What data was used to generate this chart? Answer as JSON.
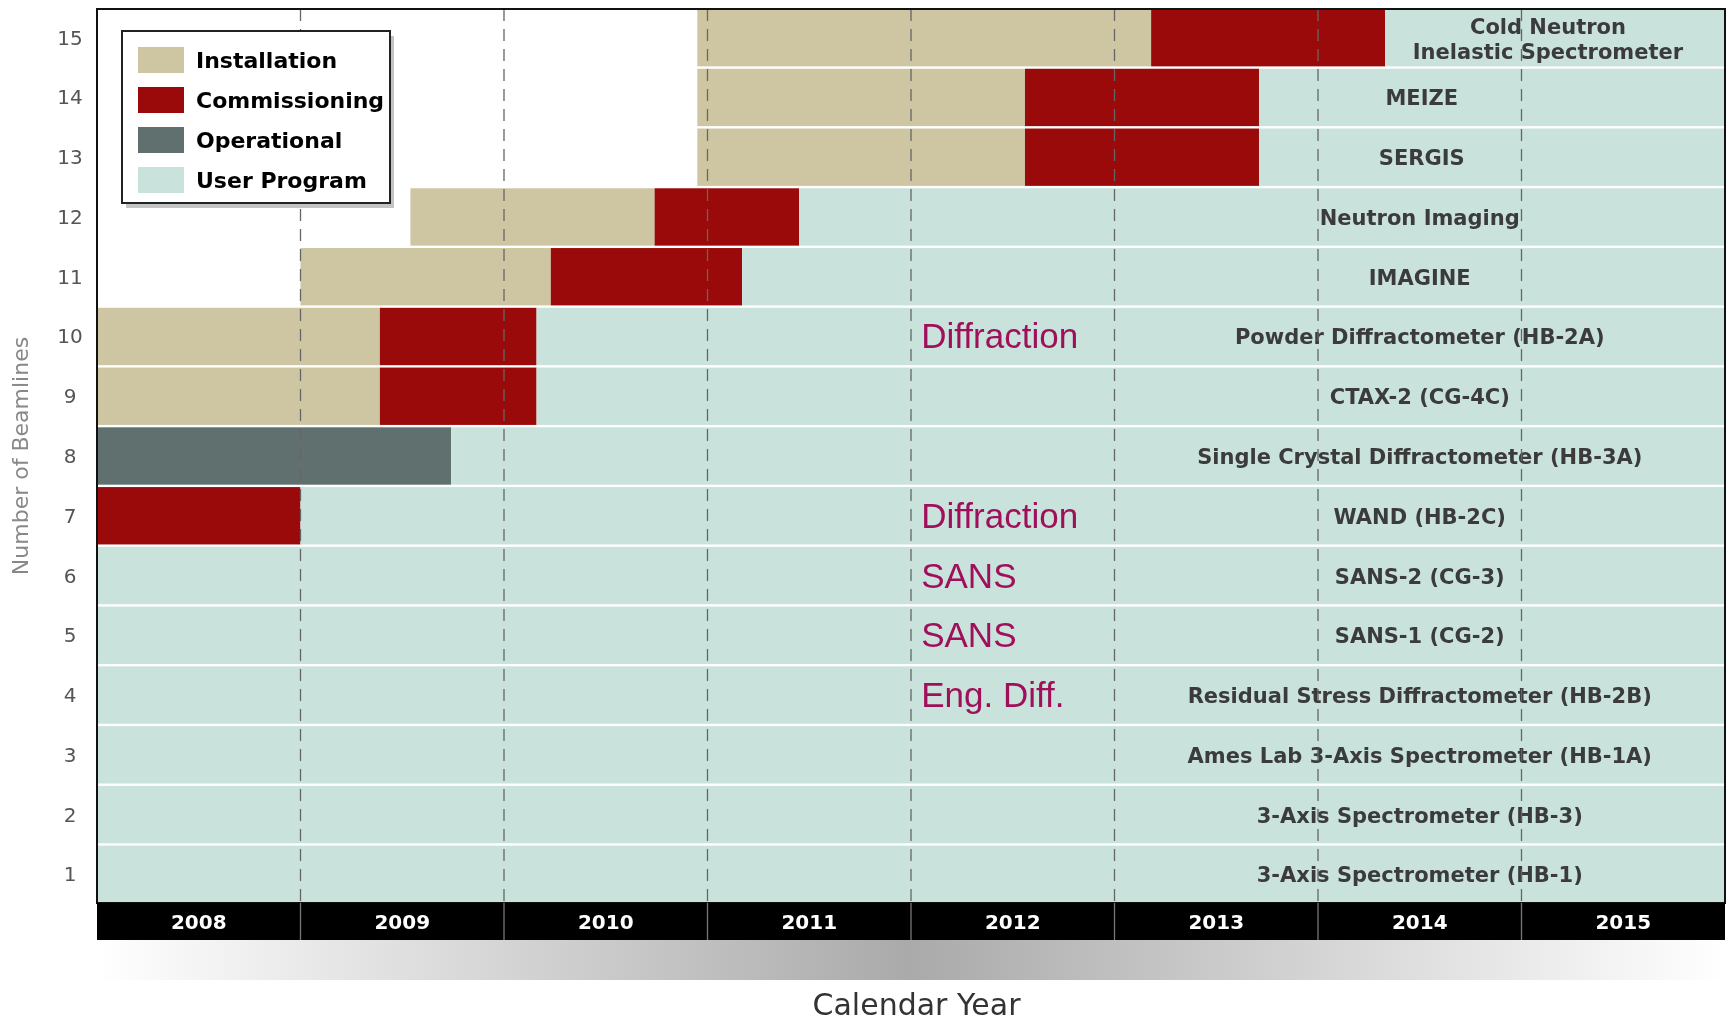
{
  "chart_data": {
    "type": "bar",
    "orientation": "horizontal",
    "xlabel": "Calendar Year",
    "ylabel": "Number of Beamlines",
    "categories": [
      "15",
      "14",
      "13",
      "12",
      "11",
      "10",
      "9",
      "8",
      "7",
      "6",
      "5",
      "4",
      "3",
      "2",
      "1"
    ],
    "series": [
      {
        "name": "Installation",
        "color": "#cec6a2",
        "base": [
          2010.95,
          2010.95,
          2010.95,
          2009.54,
          2009.0,
          2008,
          2008,
          null,
          null,
          null,
          null,
          null,
          null,
          null,
          null
        ],
        "values": [
          2.23,
          1.61,
          1.61,
          1.2,
          1.23,
          1.39,
          1.39,
          null,
          null,
          null,
          null,
          null,
          null,
          null,
          null
        ]
      },
      {
        "name": "Commissioning",
        "color": "#9a0a0a",
        "base": [
          2013.18,
          2012.56,
          2012.56,
          2010.74,
          2010.23,
          2009.39,
          2009.39,
          null,
          2008,
          null,
          null,
          null,
          null,
          null,
          null
        ],
        "values": [
          1.15,
          1.15,
          1.15,
          0.71,
          0.94,
          0.77,
          0.77,
          null,
          1.0,
          null,
          null,
          null,
          null,
          null,
          null
        ]
      },
      {
        "name": "Operational",
        "color": "#5f706e",
        "base": [
          null,
          null,
          null,
          null,
          null,
          null,
          null,
          2008,
          null,
          null,
          null,
          null,
          null,
          null,
          null
        ],
        "values": [
          null,
          null,
          null,
          null,
          null,
          null,
          null,
          1.74,
          null,
          null,
          null,
          null,
          null,
          null,
          null
        ]
      },
      {
        "name": "User Program",
        "color": "#c9e2dc",
        "base": [
          2014.33,
          2013.71,
          2013.71,
          2011.45,
          2011.17,
          2010.16,
          2010.16,
          2009.74,
          2009.0,
          2008,
          2008,
          2008,
          2008,
          2008,
          2008
        ],
        "values": [
          1.67,
          2.29,
          2.29,
          4.55,
          4.83,
          5.84,
          5.84,
          6.26,
          7.0,
          8,
          8,
          8,
          8,
          8,
          8
        ],
        "value_labels": [
          "Cold Neutron\nInelastic Spectrometer",
          "MEIZE",
          "SERGIS",
          "Neutron Imaging",
          "IMAGINE",
          "Powder Diffractometer (HB-2A)",
          "CTAX-2 (CG-4C)",
          "Single Crystal Diffractometer (HB-3A)",
          "WAND (HB-2C)",
          "SANS-2 (CG-3)",
          "SANS-1 (CG-2)",
          "Residual Stress Diffractometer (HB-2B)",
          "Ames Lab 3-Axis Spectrometer (HB-1A)",
          "3-Axis Spectrometer (HB-3)",
          "3-Axis Spectrometer (HB-1)"
        ]
      }
    ],
    "xlim": [
      2008,
      2016
    ],
    "xticks": [
      {
        "value": 2008.5,
        "label": "2008"
      },
      {
        "value": 2009,
        "label": null
      },
      {
        "value": 2009.5,
        "label": "2009"
      },
      {
        "value": 2010,
        "label": null
      },
      {
        "value": 2010.5,
        "label": "2010"
      },
      {
        "value": 2011,
        "label": null
      },
      {
        "value": 2011.5,
        "label": "2011"
      },
      {
        "value": 2012,
        "label": null
      },
      {
        "value": 2012.5,
        "label": "2012"
      },
      {
        "value": 2013,
        "label": null
      },
      {
        "value": 2013.5,
        "label": "2013"
      },
      {
        "value": 2014,
        "label": null
      },
      {
        "value": 2014.5,
        "label": "2014"
      },
      {
        "value": 2015,
        "label": null
      },
      {
        "value": 2015.5,
        "label": "2015"
      }
    ],
    "grid": "x",
    "legend": "top left",
    "annotations": [
      "Diffraction",
      "Diffraction",
      "SANS",
      "SANS",
      "Eng. Diff."
    ]
  }
}
